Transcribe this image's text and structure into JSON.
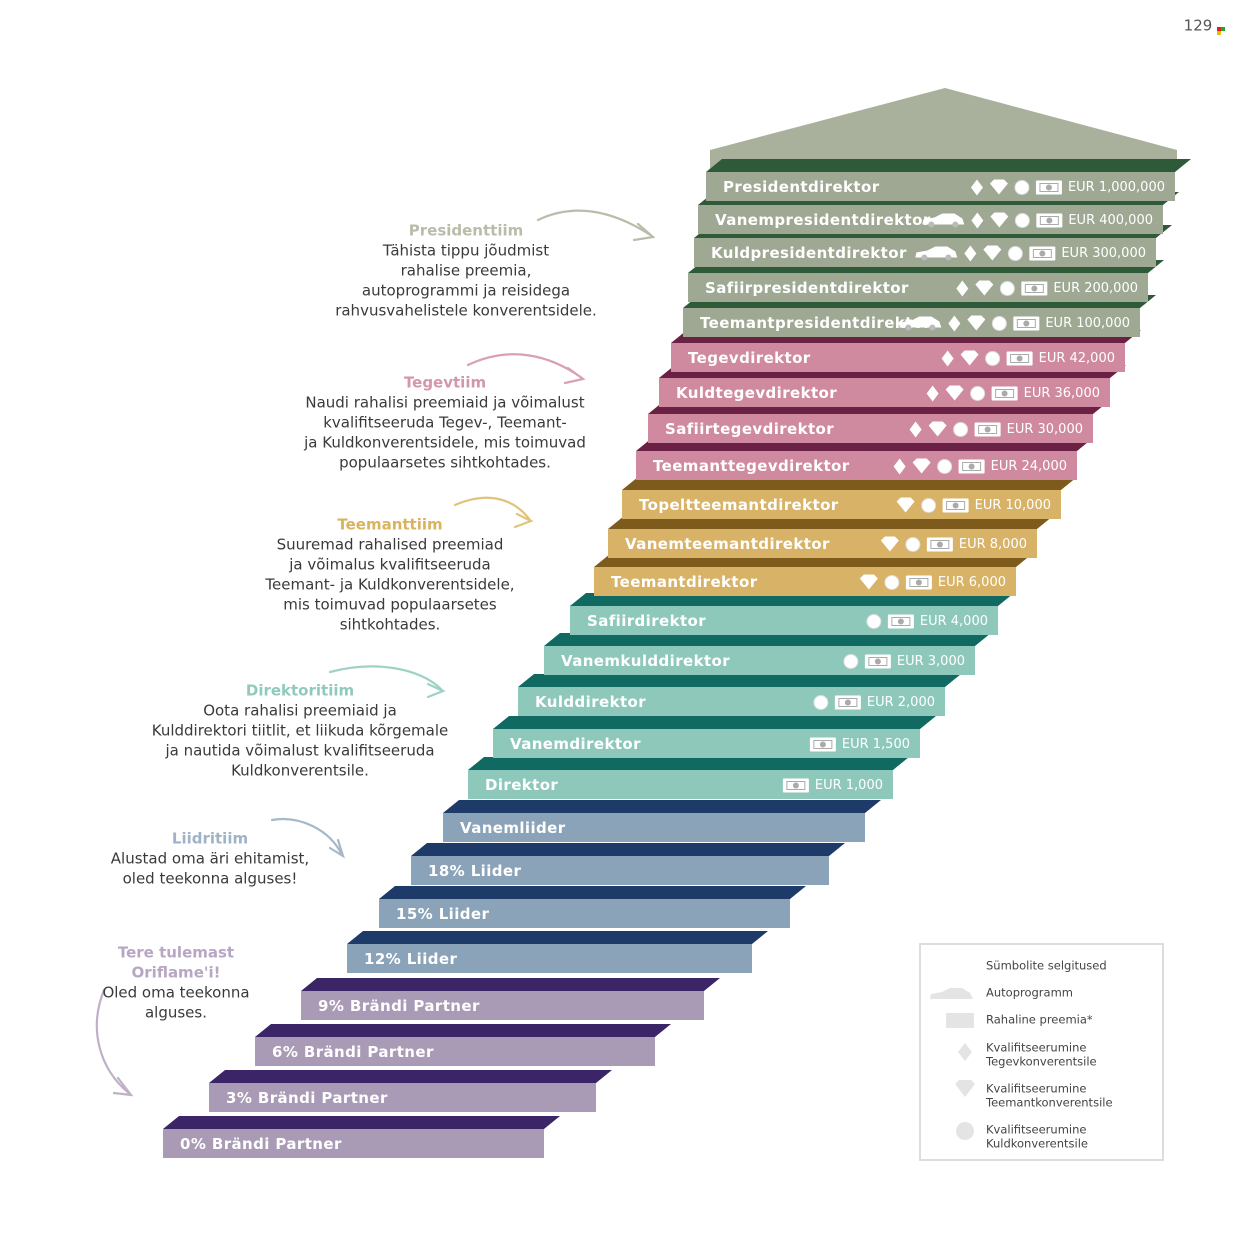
{
  "page_number": "129",
  "steps": [
    {
      "label": "Presidentdirektor",
      "reward": "EUR 1,000,000"
    },
    {
      "label": "Vanempresidentdirektor",
      "reward": "EUR 400,000"
    },
    {
      "label": "Kuldpresidentdirektor",
      "reward": "EUR 300,000"
    },
    {
      "label": "Safiirpresidentdirektor",
      "reward": "EUR 200,000"
    },
    {
      "label": "Teemantpresidentdirektor",
      "reward": "EUR 100,000"
    },
    {
      "label": "Tegevdirektor",
      "reward": "EUR 42,000"
    },
    {
      "label": "Kuldtegevdirektor",
      "reward": "EUR 36,000"
    },
    {
      "label": "Safiirtegevdirektor",
      "reward": "EUR 30,000"
    },
    {
      "label": "Teemanttegevdirektor",
      "reward": "EUR 24,000"
    },
    {
      "label": "Topeltteemantdirektor",
      "reward": "EUR 10,000"
    },
    {
      "label": "Vanemteemantdirektor",
      "reward": "EUR 8,000"
    },
    {
      "label": "Teemantdirektor",
      "reward": "EUR 6,000"
    },
    {
      "label": "Safiirdirektor",
      "reward": "EUR 4,000"
    },
    {
      "label": "Vanemkulddirektor",
      "reward": "EUR 3,000"
    },
    {
      "label": "Kulddirektor",
      "reward": "EUR 2,000"
    },
    {
      "label": "Vanemdirektor",
      "reward": "EUR 1,500"
    },
    {
      "label": "Direktor",
      "reward": "EUR 1,000"
    },
    {
      "label": "Vanemliider"
    },
    {
      "label": "18% Liider"
    },
    {
      "label": "15% Liider"
    },
    {
      "label": "12% Liider"
    },
    {
      "label": "9% Brändi Partner"
    },
    {
      "label": "6% Brändi Partner"
    },
    {
      "label": "3% Brändi Partner"
    },
    {
      "label": "0% Brändi Partner"
    }
  ],
  "teams": [
    {
      "title": [
        "Presidenttiim"
      ],
      "text": [
        "Tähista tippu jõudmist",
        "rahalise preemia,",
        "autoprogrammi ja reisidega",
        "rahvusvahelistele konverentsidele."
      ]
    },
    {
      "title": [
        "Tegevtiim"
      ],
      "text": [
        "Naudi rahalisi preemiaid ja võimalust",
        "kvalifitseeruda Tegev-, Teemant-",
        "ja Kuldkonverentsidele, mis toimuvad",
        "populaarsetes sihtkohtades."
      ]
    },
    {
      "title": [
        "Teemanttiim"
      ],
      "text": [
        "Suuremad rahalised preemiad",
        "ja võimalus kvalifitseeruda",
        "Teemant- ja Kuldkonverentsidele,",
        "mis toimuvad populaarsetes",
        "sihtkohtades."
      ]
    },
    {
      "title": [
        "Direktoritiim"
      ],
      "text": [
        "Oota rahalisi preemiaid ja",
        "Kulddirektori tiitlit, et liikuda kõrgemale",
        "ja nautida võimalust kvalifitseeruda",
        "Kuldkonverentsile."
      ]
    },
    {
      "title": [
        "Liidritiim"
      ],
      "text": [
        "Alustad oma äri ehitamist,",
        "oled teekonna alguses!"
      ]
    },
    {
      "title": [
        "Tere tulemast",
        "Oriflame'i!"
      ],
      "text": [
        "Oled oma teekonna",
        "alguses."
      ]
    }
  ],
  "legend": {
    "title": "Sümbolite selgitused",
    "items": [
      [
        "Autoprogramm"
      ],
      [
        "Rahaline preemia*"
      ],
      [
        "Kvalifitseerumine",
        "Tegevkonverentsile"
      ],
      [
        "Kvalifitseerumine",
        "Teemantkonverentsile"
      ],
      [
        "Kvalifitseerumine",
        "Kuldkonverentsile"
      ]
    ]
  }
}
